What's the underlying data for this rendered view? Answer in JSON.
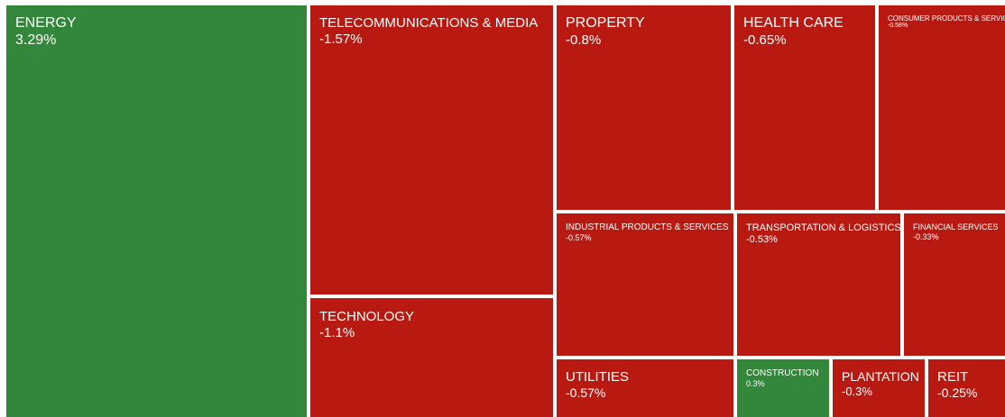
{
  "colors": {
    "gain": "#32873a",
    "loss": "#b81a12"
  },
  "chart_data": {
    "type": "treemap",
    "tiles": [
      {
        "name": "ENERGY",
        "change_label": "3.29%",
        "change": 3.29,
        "color": "#32873a"
      },
      {
        "name": "TELECOMMUNICATIONS & MEDIA",
        "change_label": "-1.57%",
        "change": -1.57,
        "color": "#b81a12"
      },
      {
        "name": "TECHNOLOGY",
        "change_label": "-1.1%",
        "change": -1.1,
        "color": "#b81a12"
      },
      {
        "name": "PROPERTY",
        "change_label": "-0.8%",
        "change": -0.8,
        "color": "#b81a12"
      },
      {
        "name": "HEALTH CARE",
        "change_label": "-0.65%",
        "change": -0.65,
        "color": "#b81a12"
      },
      {
        "name": "CONSUMER PRODUCTS & SERVICES",
        "change_label": "-0.58%",
        "change": -0.58,
        "color": "#b81a12"
      },
      {
        "name": "INDUSTRIAL PRODUCTS & SERVICES",
        "change_label": "-0.57%",
        "change": -0.57,
        "color": "#b81a12"
      },
      {
        "name": "TRANSPORTATION & LOGISTICS",
        "change_label": "-0.53%",
        "change": -0.53,
        "color": "#b81a12"
      },
      {
        "name": "FINANCIAL SERVICES",
        "change_label": "-0.33%",
        "change": -0.33,
        "color": "#b81a12"
      },
      {
        "name": "UTILITIES",
        "change_label": "-0.57%",
        "change": -0.57,
        "color": "#b81a12"
      },
      {
        "name": "CONSTRUCTION",
        "change_label": "0.3%",
        "change": 0.3,
        "color": "#32873a"
      },
      {
        "name": "PLANTATION",
        "change_label": "-0.3%",
        "change": -0.3,
        "color": "#b81a12"
      },
      {
        "name": "REIT",
        "change_label": "-0.25%",
        "change": -0.25,
        "color": "#b81a12"
      }
    ]
  }
}
